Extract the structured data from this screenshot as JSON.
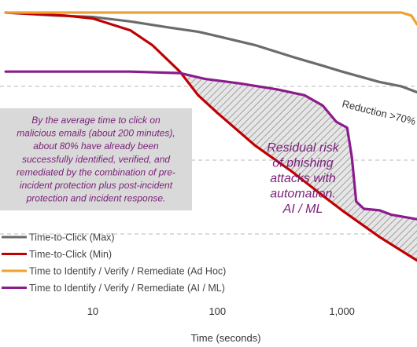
{
  "chart_data": {
    "type": "line",
    "xscale": "log",
    "xlabel": "Time (seconds)",
    "ylabel": "",
    "xlim": [
      1.8,
      4000
    ],
    "ylim": [
      0,
      100
    ],
    "grid": "horizontal dashed",
    "legend_position": "bottom-left",
    "x_ticks": [
      10,
      100,
      1000
    ],
    "x_tick_labels": [
      "10",
      "100",
      "1,000"
    ],
    "series": [
      {
        "name": "Time-to-Click (Max)",
        "color": "#6b6b6b",
        "points": [
          [
            2,
            100
          ],
          [
            5,
            99
          ],
          [
            10,
            98.5
          ],
          [
            20,
            97
          ],
          [
            40,
            95
          ],
          [
            70,
            93.5
          ],
          [
            100,
            92
          ],
          [
            200,
            89
          ],
          [
            400,
            85
          ],
          [
            700,
            82
          ],
          [
            1000,
            80
          ],
          [
            2000,
            76.5
          ],
          [
            3000,
            75
          ],
          [
            4000,
            73
          ]
        ]
      },
      {
        "name": "Time-to-Click (Min)",
        "color": "#c00000",
        "points": [
          [
            2,
            100
          ],
          [
            6,
            99
          ],
          [
            10,
            98
          ],
          [
            20,
            94
          ],
          [
            30,
            89
          ],
          [
            50,
            80
          ],
          [
            70,
            72
          ],
          [
            100,
            66
          ],
          [
            200,
            55
          ],
          [
            400,
            46
          ],
          [
            700,
            38
          ],
          [
            1000,
            33
          ],
          [
            2000,
            24
          ],
          [
            4000,
            16
          ]
        ]
      },
      {
        "name": "Time to Identify / Verify / Remediate (Ad Hoc)",
        "color": "#f0a030",
        "points": [
          [
            2,
            100
          ],
          [
            100,
            100
          ],
          [
            1000,
            100
          ],
          [
            3000,
            100
          ],
          [
            3600,
            99
          ],
          [
            4000,
            96
          ]
        ]
      },
      {
        "name": "Time to Identify / Verify / Remediate (AI / ML)",
        "color": "#8b1c8c",
        "points": [
          [
            2,
            80
          ],
          [
            20,
            80
          ],
          [
            50,
            79.5
          ],
          [
            80,
            77.5
          ],
          [
            150,
            76
          ],
          [
            300,
            74
          ],
          [
            500,
            72
          ],
          [
            700,
            68.5
          ],
          [
            900,
            63
          ],
          [
            1100,
            61
          ],
          [
            1200,
            51
          ],
          [
            1300,
            36
          ],
          [
            1500,
            33.5
          ],
          [
            2000,
            33
          ],
          [
            2500,
            31.5
          ],
          [
            4000,
            30
          ]
        ]
      }
    ],
    "annotations": {
      "note_lines": [
        "By the average time to click on",
        "malicious emails (about 200 minutes),",
        "about 80% have already been",
        "successfully identified, verified, and",
        "remediated by the combination of pre-",
        "incident protection plus post-incident",
        "protection and incident response."
      ],
      "residual_lines": [
        "Residual risk",
        "of phishing",
        "attacks with",
        "automation.",
        "AI / ML"
      ],
      "reduction": "Reduction >70%"
    }
  }
}
